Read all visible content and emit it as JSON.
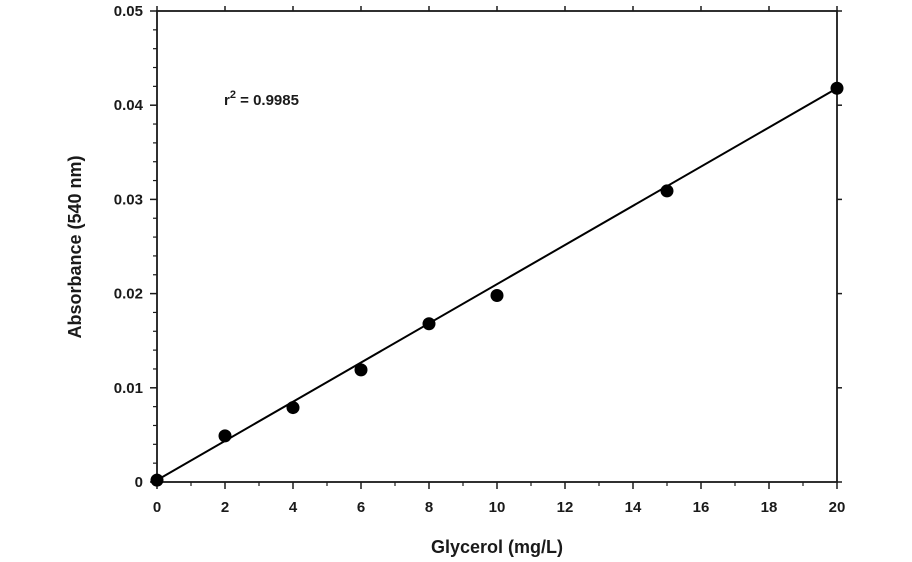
{
  "chart_data": {
    "type": "scatter",
    "title": "",
    "xlabel": "Glycerol (mg/L)",
    "ylabel": "Absorbance (540 nm)",
    "xlim": [
      0,
      20
    ],
    "ylim": [
      0,
      0.05
    ],
    "x_ticks": [
      0,
      2,
      4,
      6,
      8,
      10,
      12,
      14,
      16,
      18,
      20
    ],
    "x_tick_labels": [
      "0",
      "2",
      "4",
      "6",
      "8",
      "10",
      "12",
      "14",
      "16",
      "18",
      "20"
    ],
    "y_ticks": [
      0,
      0.01,
      0.02,
      0.03,
      0.04,
      0.05
    ],
    "y_tick_labels": [
      "0",
      "0.01",
      "0.02",
      "0.03",
      "0.04",
      "0.05"
    ],
    "grid": false,
    "series": [
      {
        "x": [
          0,
          2,
          4,
          6,
          8,
          10,
          15,
          20
        ],
        "y": [
          0.0002,
          0.0049,
          0.0079,
          0.0119,
          0.0168,
          0.0198,
          0.0309,
          0.0418
        ]
      }
    ],
    "fit_line": {
      "type": "linear",
      "x": [
        0,
        20
      ],
      "y": [
        0.0002,
        0.0418
      ]
    },
    "annotation": {
      "base": "r",
      "superscript": "2",
      "text": " = 0.9985"
    },
    "colors": {
      "marker": "#000000",
      "line": "#000000",
      "axis": "#1a1a1a"
    }
  }
}
